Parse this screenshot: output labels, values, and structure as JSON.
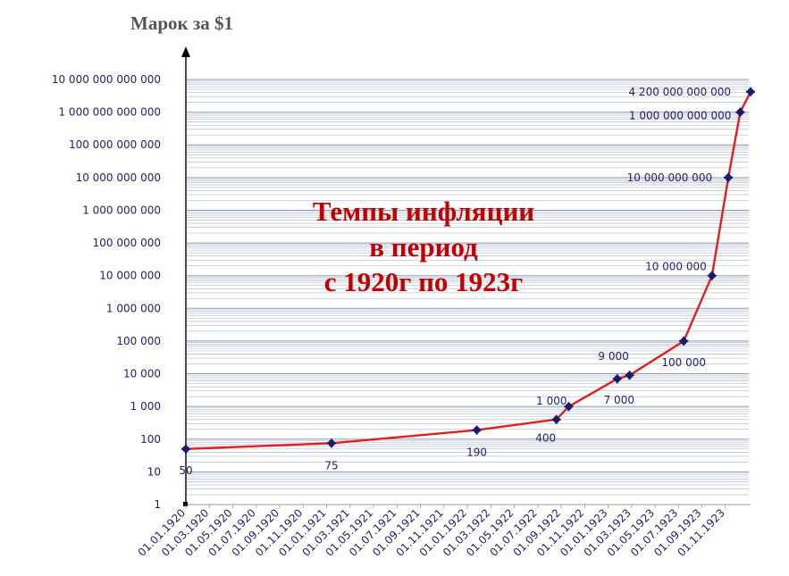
{
  "chart_data": {
    "type": "line",
    "title": [
      "Темпы инфляции",
      "в период",
      "с 1920г по 1923г"
    ],
    "ylabel": "Марок за $1",
    "xlabel": "",
    "yscale": "log",
    "ylim": [
      1,
      10000000000000
    ],
    "ytick_labels": [
      "1",
      "10",
      "100",
      "1 000",
      "10 000",
      "100 000",
      "1 000 000",
      "10 000 000",
      "100 000 000",
      "1 000 000 000",
      "10 000 000 000",
      "100 000 000 000",
      "1 000 000 000 000",
      "10 000 000 000 000"
    ],
    "xtick_labels": [
      "01.01.1920",
      "01.03.1920",
      "01.05.1920",
      "01.07.1920",
      "01.09.1920",
      "01.11.1920",
      "01.01.1921",
      "01.03.1921",
      "01.05.1921",
      "01.07.1921",
      "01.09.1921",
      "01.11.1921",
      "01.01.1922",
      "01.03.1922",
      "01.05.1922",
      "01.07.1922",
      "01.09.1922",
      "01.11.1922",
      "01.01.1923",
      "01.03.1923",
      "01.05.1923",
      "01.07.1923",
      "01.09.1923",
      "01.11.1923"
    ],
    "xlim": [
      "1920-01-01",
      "1923-11-20"
    ],
    "grid": true,
    "line_color": "#e0201c",
    "marker_color": "#1a1a6e",
    "series": [
      {
        "points": [
          {
            "x": "1920-01-01",
            "y": 50,
            "label": "50"
          },
          {
            "x": "1921-01-01",
            "y": 75,
            "label": "75"
          },
          {
            "x": "1922-01-01",
            "y": 190,
            "label": "190"
          },
          {
            "x": "1922-07-20",
            "y": 400,
            "label": "400"
          },
          {
            "x": "1922-08-20",
            "y": 1000,
            "label": "1 000"
          },
          {
            "x": "1922-12-20",
            "y": 7000,
            "label": "7 000"
          },
          {
            "x": "1923-01-20",
            "y": 9000,
            "label": "9 000"
          },
          {
            "x": "1923-06-05",
            "y": 100000,
            "label": "100 000"
          },
          {
            "x": "1923-08-15",
            "y": 10000000,
            "label": "10 000 000"
          },
          {
            "x": "1923-09-25",
            "y": 10000000000,
            "label": "10 000 000 000"
          },
          {
            "x": "1923-10-25",
            "y": 1000000000000,
            "label": "1 000 000 000 000"
          },
          {
            "x": "1923-11-20",
            "y": 4200000000000,
            "label": "4 200 000 000 000"
          }
        ]
      }
    ]
  }
}
